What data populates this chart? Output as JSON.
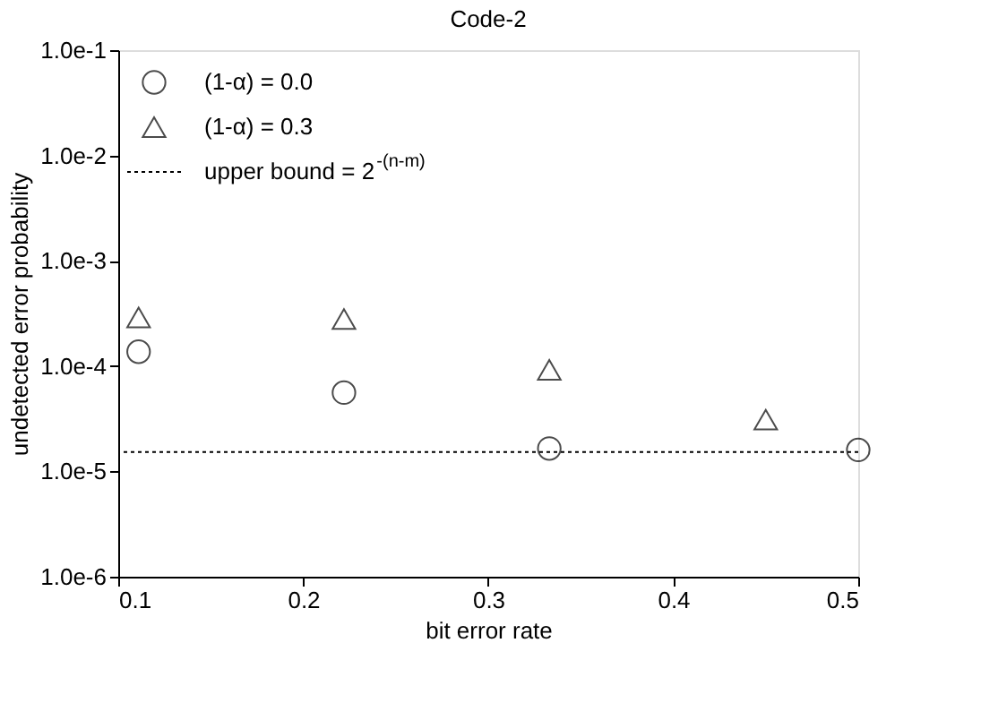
{
  "chart_data": {
    "type": "scatter",
    "title": "Code-2",
    "xlabel": "bit error rate",
    "ylabel": "undetected error probability",
    "log": "y",
    "xlim": [
      0.1,
      0.5
    ],
    "xticks": [
      0.1,
      0.2,
      0.3,
      0.4,
      0.5
    ],
    "ylim": [
      1e-06,
      0.1
    ],
    "yticks": [
      {
        "value": 1e-06,
        "label": "1.0e-6"
      },
      {
        "value": 1e-05,
        "label": "1.0e-5"
      },
      {
        "value": 0.0001,
        "label": "1.0e-4"
      },
      {
        "value": 0.001,
        "label": "1.0e-3"
      },
      {
        "value": 0.01,
        "label": "1.0e-2"
      },
      {
        "value": 0.1,
        "label": "1.0e-1"
      }
    ],
    "grid": false,
    "legend": "top left",
    "series": [
      {
        "name": "(1-α) = 0.0",
        "color": "#000000",
        "marker": "circle",
        "x": [
          0.111,
          0.222,
          0.333,
          0.5
        ],
        "values": [
          0.000137,
          5.6e-05,
          1.65e-05,
          1.6e-05
        ]
      },
      {
        "name": "(1-α) = 0.3",
        "color": "#000000",
        "marker": "triangle",
        "x": [
          0.111,
          0.222,
          0.333,
          0.45
        ],
        "values": [
          0.00029,
          0.00028,
          9.2e-05,
          3.1e-05
        ]
      }
    ],
    "ref_lines": [
      {
        "axis": "y",
        "value": 1.53e-05,
        "color": "#000000",
        "line_style": "dotted"
      }
    ],
    "annotations": [
      "upper bound = 2$^{-(n-m)}$"
    ]
  }
}
